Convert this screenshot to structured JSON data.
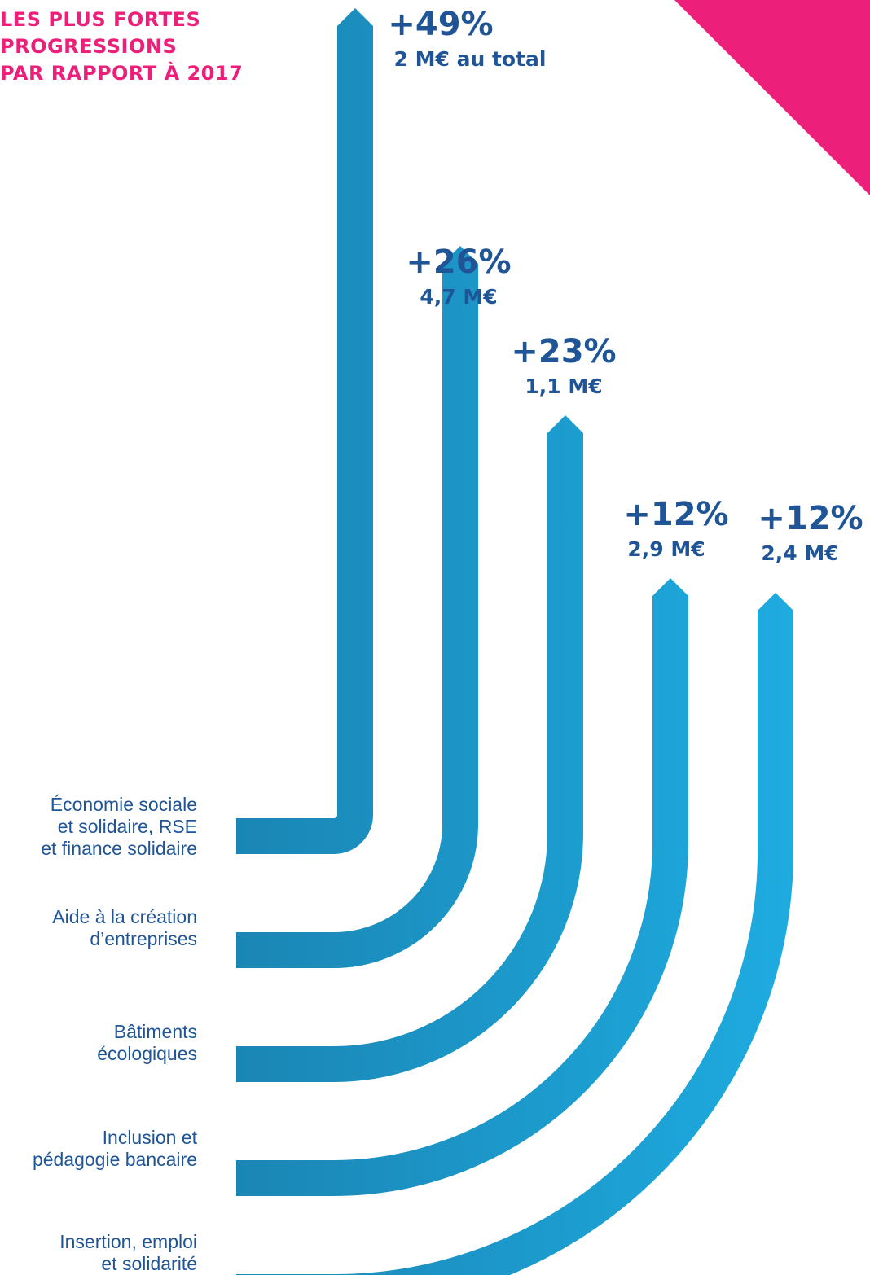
{
  "chart_data": {
    "type": "bar",
    "title": [
      "LES PLUS FORTES",
      "PROGRESSIONS",
      "PAR RAPPORT À 2017"
    ],
    "categories": [
      [
        "Économie sociale",
        "et solidaire, RSE",
        "et finance solidaire"
      ],
      [
        "Aide à la création",
        "d’entreprises"
      ],
      [
        "Bâtiments",
        "écologiques"
      ],
      [
        "Inclusion et",
        "pédagogie bancaire"
      ],
      [
        "Insertion, emploi",
        "et solidarité"
      ]
    ],
    "values": [
      49,
      26,
      23,
      12,
      12
    ],
    "value_labels": [
      "+49%",
      "+26%",
      "+23%",
      "+12%",
      "+12%"
    ],
    "amount_labels": [
      "2 M€ au total",
      "4,7 M€",
      "1,1 M€",
      "2,9 M€",
      "2,4 M€"
    ],
    "unit": "%"
  },
  "colors": {
    "title": "#ec1f7a",
    "text": "#1f5597",
    "corner_triangle": "#ec1f7a",
    "bar_dark": "#1a86b5",
    "bar_light": "#1eabe0"
  }
}
